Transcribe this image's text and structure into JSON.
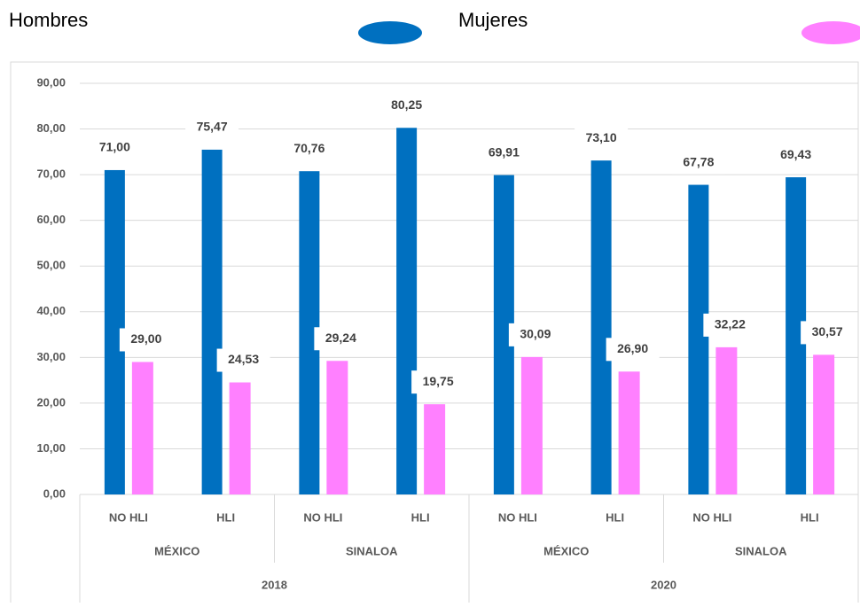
{
  "chart_data": {
    "type": "bar",
    "categories": [
      "NO HLI",
      "HLI",
      "NO HLI",
      "HLI",
      "NO HLI",
      "HLI",
      "NO HLI",
      "HLI"
    ],
    "groups": [
      "MÉXICO",
      "SINALOA",
      "MÉXICO",
      "SINALOA"
    ],
    "years": [
      "2018",
      "2020"
    ],
    "series": [
      {
        "name": "Hombres",
        "color": "#0070c0",
        "values": [
          71.0,
          75.47,
          70.76,
          80.25,
          69.91,
          73.1,
          67.78,
          69.43
        ],
        "value_labels": [
          "71,00",
          "75,47",
          "70,76",
          "80,25",
          "69,91",
          "73,10",
          "67,78",
          "69,43"
        ]
      },
      {
        "name": "Mujeres",
        "color": "#ff80ff",
        "values": [
          29.0,
          24.53,
          29.24,
          19.75,
          30.09,
          26.9,
          32.22,
          30.57
        ],
        "value_labels": [
          "29,00",
          "24,53",
          "29,24",
          "19,75",
          "30,09",
          "26,90",
          "32,22",
          "30,57"
        ]
      }
    ],
    "ylim": [
      0,
      90
    ],
    "yticks": [
      {
        "value": 0,
        "label": "0,00"
      },
      {
        "value": 10,
        "label": "10,00"
      },
      {
        "value": 20,
        "label": "20,00"
      },
      {
        "value": 30,
        "label": "30,00"
      },
      {
        "value": 40,
        "label": "40,00"
      },
      {
        "value": 50,
        "label": "50,00"
      },
      {
        "value": 60,
        "label": "60,00"
      },
      {
        "value": 70,
        "label": "70,00"
      },
      {
        "value": 80,
        "label": "80,00"
      },
      {
        "value": 90,
        "label": "90,00"
      }
    ],
    "grid": true
  }
}
